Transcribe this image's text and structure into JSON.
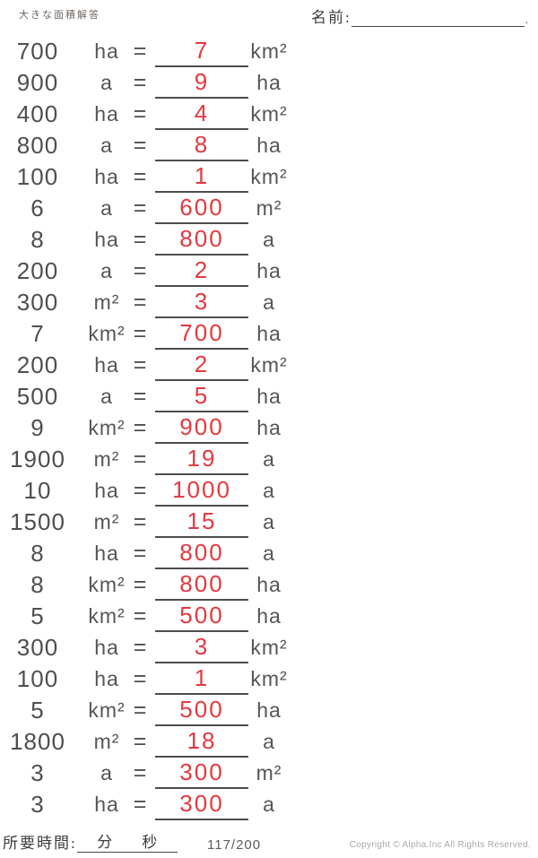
{
  "header": {
    "title": "大きな面積解答",
    "name_label": "名前:",
    "name_line_end_mark": "."
  },
  "colors": {
    "answer_red": "#e5383f",
    "body_text": "#4e4e4e",
    "answer_line": "#4c4c4c",
    "serif_text": "#3f3b39",
    "copyright_gray": "#a8a8a8"
  },
  "equals_sign": "=",
  "problems": [
    {
      "value": "700",
      "unit": "ha",
      "answer": "7",
      "answer_unit": "km²"
    },
    {
      "value": "900",
      "unit": "a",
      "answer": "9",
      "answer_unit": "ha"
    },
    {
      "value": "400",
      "unit": "ha",
      "answer": "4",
      "answer_unit": "km²"
    },
    {
      "value": "800",
      "unit": "a",
      "answer": "8",
      "answer_unit": "ha"
    },
    {
      "value": "100",
      "unit": "ha",
      "answer": "1",
      "answer_unit": "km²"
    },
    {
      "value": "6",
      "unit": "a",
      "answer": "600",
      "answer_unit": "m²"
    },
    {
      "value": "8",
      "unit": "ha",
      "answer": "800",
      "answer_unit": "a"
    },
    {
      "value": "200",
      "unit": "a",
      "answer": "2",
      "answer_unit": "ha"
    },
    {
      "value": "300",
      "unit": "m²",
      "answer": "3",
      "answer_unit": "a"
    },
    {
      "value": "7",
      "unit": "km²",
      "answer": "700",
      "answer_unit": "ha"
    },
    {
      "value": "200",
      "unit": "ha",
      "answer": "2",
      "answer_unit": "km²"
    },
    {
      "value": "500",
      "unit": "a",
      "answer": "5",
      "answer_unit": "ha"
    },
    {
      "value": "9",
      "unit": "km²",
      "answer": "900",
      "answer_unit": "ha"
    },
    {
      "value": "1900",
      "unit": "m²",
      "answer": "19",
      "answer_unit": "a"
    },
    {
      "value": "10",
      "unit": "ha",
      "answer": "1000",
      "answer_unit": "a"
    },
    {
      "value": "1500",
      "unit": "m²",
      "answer": "15",
      "answer_unit": "a"
    },
    {
      "value": "8",
      "unit": "ha",
      "answer": "800",
      "answer_unit": "a"
    },
    {
      "value": "8",
      "unit": "km²",
      "answer": "800",
      "answer_unit": "ha"
    },
    {
      "value": "5",
      "unit": "km²",
      "answer": "500",
      "answer_unit": "ha"
    },
    {
      "value": "300",
      "unit": "ha",
      "answer": "3",
      "answer_unit": "km²"
    },
    {
      "value": "100",
      "unit": "ha",
      "answer": "1",
      "answer_unit": "km²"
    },
    {
      "value": "5",
      "unit": "km²",
      "answer": "500",
      "answer_unit": "ha"
    },
    {
      "value": "1800",
      "unit": "m²",
      "answer": "18",
      "answer_unit": "a"
    },
    {
      "value": "3",
      "unit": "a",
      "answer": "300",
      "answer_unit": "m²"
    },
    {
      "value": "3",
      "unit": "ha",
      "answer": "300",
      "answer_unit": "a"
    }
  ],
  "footer": {
    "time_label": "所要時間:",
    "minutes_label": "分",
    "seconds_label": "秒",
    "page_number": "117/200",
    "copyright": "Copyright © Alpha.Inc All Rights Reserved."
  }
}
